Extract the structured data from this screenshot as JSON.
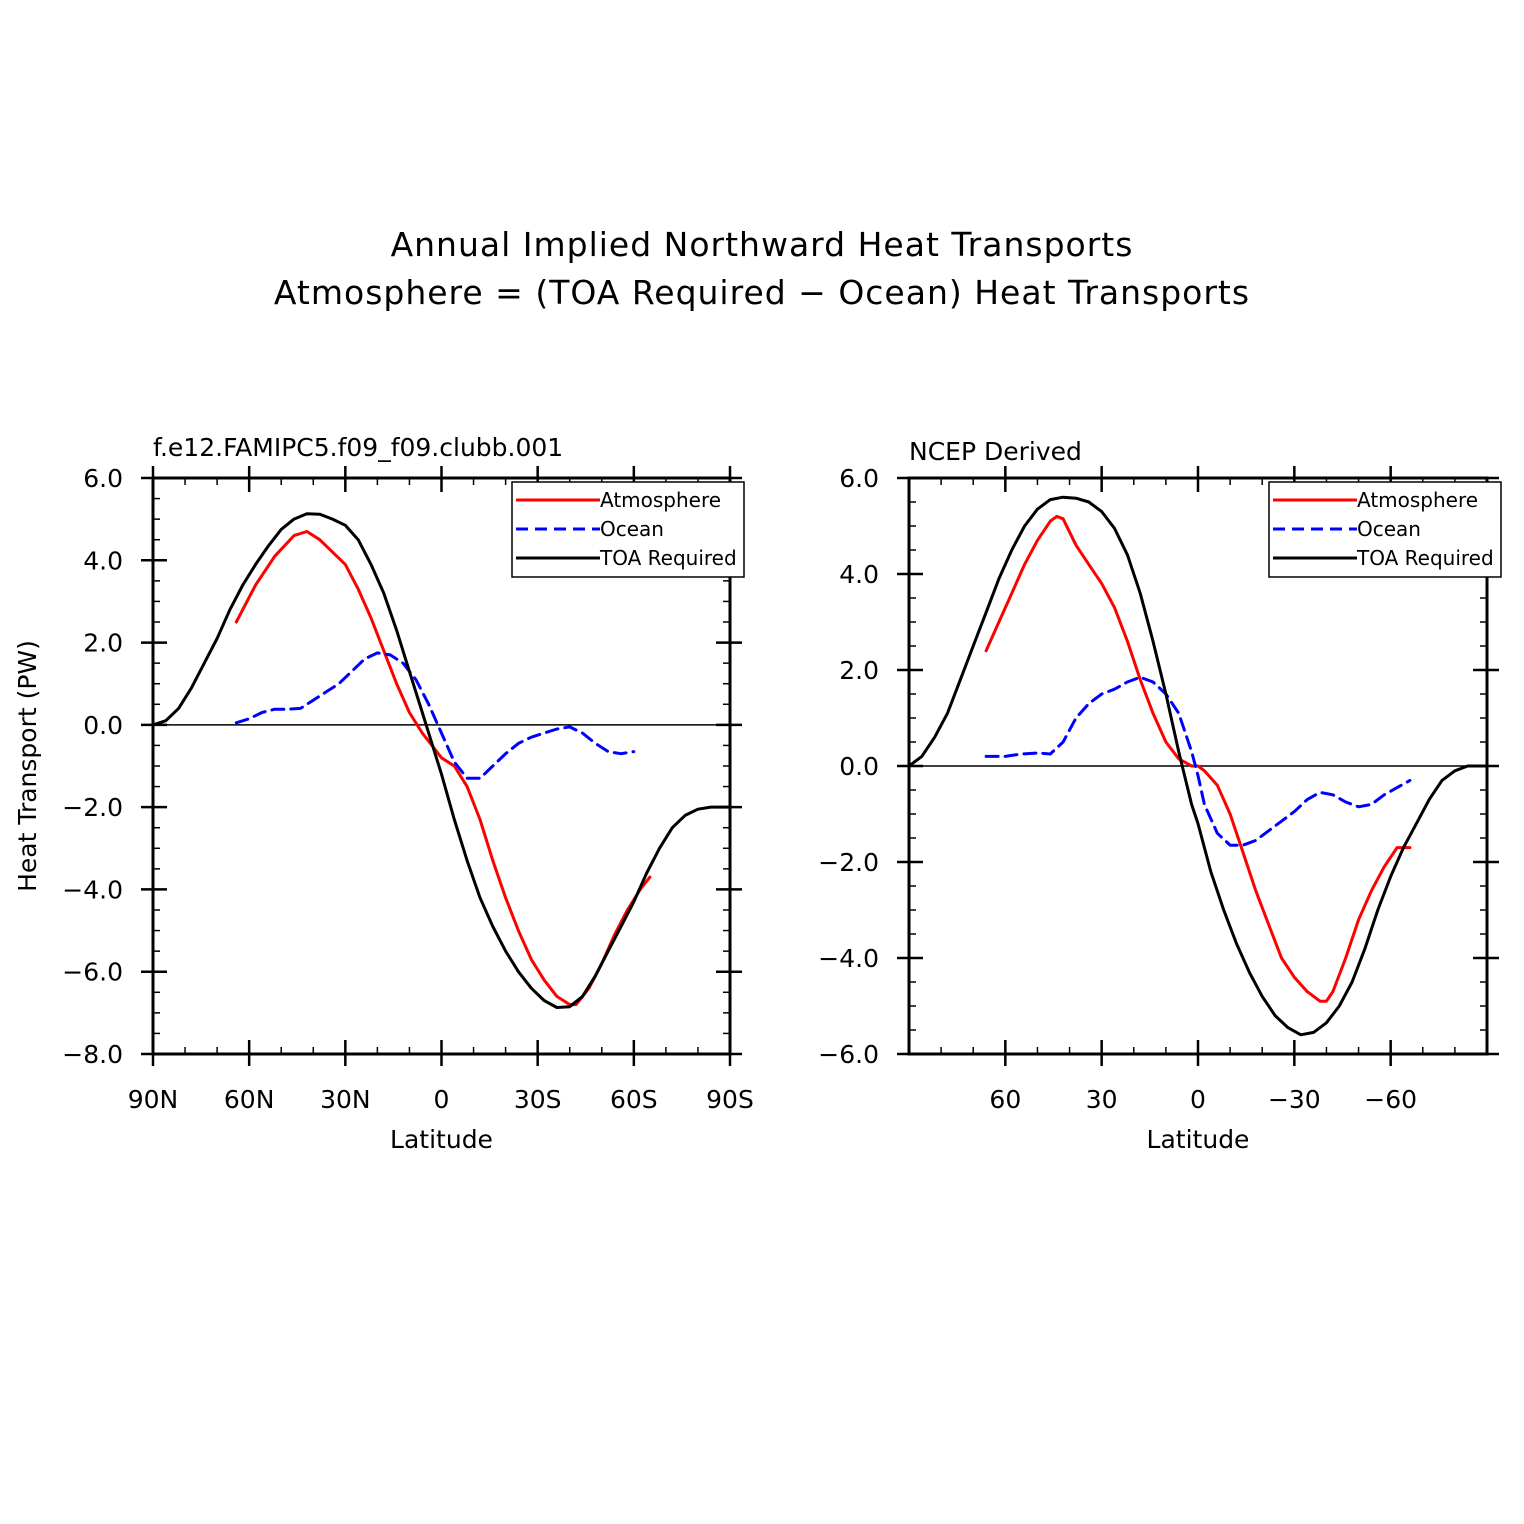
{
  "figure": {
    "title_lines": [
      "Annual Implied Northward Heat Transports",
      "Atmosphere = (TOA Required − Ocean) Heat Transports"
    ]
  },
  "chart_data": [
    {
      "type": "line",
      "title": "f.e12.FAMIPC5.f09_f09.clubb.001",
      "xlabel": "Latitude",
      "ylabel": "Heat Transport (PW)",
      "xlim": [
        90,
        -90
      ],
      "ylim": [
        -8,
        6
      ],
      "x_ticks": [
        90,
        60,
        30,
        0,
        -30,
        -60,
        -90
      ],
      "x_tick_labels": [
        "90N",
        "60N",
        "30N",
        "0",
        "30S",
        "60S",
        "90S"
      ],
      "y_ticks": [
        6,
        4,
        2,
        0,
        -2,
        -4,
        -6,
        -8
      ],
      "y_tick_labels": [
        "6.0",
        "4.0",
        "2.0",
        "0.0",
        "−2.0",
        "−4.0",
        "−6.0",
        "−8.0"
      ],
      "zero_line": true,
      "legend_position": "top-right",
      "series": [
        {
          "name": "Atmosphere",
          "color": "#ff0000",
          "dash": "solid",
          "points": [
            [
              64,
              2.5
            ],
            [
              58,
              3.4
            ],
            [
              52,
              4.1
            ],
            [
              46,
              4.6
            ],
            [
              42,
              4.7
            ],
            [
              38,
              4.5
            ],
            [
              34,
              4.2
            ],
            [
              30,
              3.9
            ],
            [
              26,
              3.3
            ],
            [
              22,
              2.6
            ],
            [
              18,
              1.8
            ],
            [
              14,
              1.0
            ],
            [
              10,
              0.3
            ],
            [
              6,
              -0.2
            ],
            [
              2,
              -0.6
            ],
            [
              0,
              -0.8
            ],
            [
              -4,
              -1.0
            ],
            [
              -8,
              -1.5
            ],
            [
              -12,
              -2.3
            ],
            [
              -16,
              -3.3
            ],
            [
              -20,
              -4.2
            ],
            [
              -24,
              -5.0
            ],
            [
              -28,
              -5.7
            ],
            [
              -32,
              -6.2
            ],
            [
              -36,
              -6.6
            ],
            [
              -40,
              -6.8
            ],
            [
              -42,
              -6.8
            ],
            [
              -46,
              -6.4
            ],
            [
              -50,
              -5.8
            ],
            [
              -54,
              -5.1
            ],
            [
              -58,
              -4.5
            ],
            [
              -62,
              -4.0
            ],
            [
              -65,
              -3.7
            ]
          ]
        },
        {
          "name": "Ocean",
          "color": "#0000ff",
          "dash": "dashed",
          "points": [
            [
              64,
              0.05
            ],
            [
              60,
              0.15
            ],
            [
              56,
              0.3
            ],
            [
              52,
              0.38
            ],
            [
              48,
              0.38
            ],
            [
              44,
              0.4
            ],
            [
              40,
              0.6
            ],
            [
              36,
              0.8
            ],
            [
              32,
              1.0
            ],
            [
              28,
              1.3
            ],
            [
              24,
              1.6
            ],
            [
              20,
              1.75
            ],
            [
              16,
              1.7
            ],
            [
              12,
              1.5
            ],
            [
              8,
              1.1
            ],
            [
              4,
              0.5
            ],
            [
              0,
              -0.2
            ],
            [
              -4,
              -0.9
            ],
            [
              -8,
              -1.3
            ],
            [
              -12,
              -1.3
            ],
            [
              -16,
              -1.0
            ],
            [
              -20,
              -0.7
            ],
            [
              -24,
              -0.45
            ],
            [
              -28,
              -0.3
            ],
            [
              -32,
              -0.2
            ],
            [
              -36,
              -0.1
            ],
            [
              -40,
              -0.05
            ],
            [
              -44,
              -0.2
            ],
            [
              -48,
              -0.45
            ],
            [
              -52,
              -0.65
            ],
            [
              -56,
              -0.7
            ],
            [
              -60,
              -0.65
            ]
          ]
        },
        {
          "name": "TOA Required",
          "color": "#000000",
          "dash": "solid",
          "points": [
            [
              90,
              0.0
            ],
            [
              86,
              0.1
            ],
            [
              82,
              0.4
            ],
            [
              78,
              0.9
            ],
            [
              74,
              1.5
            ],
            [
              70,
              2.1
            ],
            [
              66,
              2.8
            ],
            [
              62,
              3.4
            ],
            [
              58,
              3.9
            ],
            [
              54,
              4.35
            ],
            [
              50,
              4.75
            ],
            [
              46,
              5.0
            ],
            [
              42,
              5.13
            ],
            [
              38,
              5.12
            ],
            [
              34,
              5.0
            ],
            [
              30,
              4.85
            ],
            [
              26,
              4.5
            ],
            [
              22,
              3.9
            ],
            [
              18,
              3.2
            ],
            [
              14,
              2.3
            ],
            [
              10,
              1.3
            ],
            [
              6,
              0.3
            ],
            [
              2,
              -0.7
            ],
            [
              0,
              -1.2
            ],
            [
              -4,
              -2.3
            ],
            [
              -8,
              -3.3
            ],
            [
              -12,
              -4.2
            ],
            [
              -16,
              -4.9
            ],
            [
              -20,
              -5.5
            ],
            [
              -24,
              -6.0
            ],
            [
              -28,
              -6.4
            ],
            [
              -32,
              -6.7
            ],
            [
              -36,
              -6.87
            ],
            [
              -40,
              -6.85
            ],
            [
              -44,
              -6.6
            ],
            [
              -48,
              -6.1
            ],
            [
              -52,
              -5.5
            ],
            [
              -56,
              -4.9
            ],
            [
              -60,
              -4.3
            ],
            [
              -64,
              -3.6
            ],
            [
              -68,
              -3.0
            ],
            [
              -72,
              -2.5
            ],
            [
              -76,
              -2.2
            ],
            [
              -80,
              -2.05
            ],
            [
              -84,
              -2.0
            ],
            [
              -90,
              -2.0
            ]
          ]
        }
      ]
    },
    {
      "type": "line",
      "title": "NCEP Derived",
      "xlabel": "Latitude",
      "ylabel": "",
      "xlim": [
        90,
        -90
      ],
      "ylim": [
        -6,
        6
      ],
      "x_ticks": [
        60,
        30,
        0,
        -30,
        -60
      ],
      "x_tick_labels": [
        "60",
        "30",
        "0",
        "−30",
        "−60"
      ],
      "y_ticks": [
        6,
        4,
        2,
        0,
        -2,
        -4,
        -6
      ],
      "y_tick_labels": [
        "6.0",
        "4.0",
        "2.0",
        "0.0",
        "−2.0",
        "−4.0",
        "−6.0"
      ],
      "zero_line": true,
      "legend_position": "top-right",
      "series": [
        {
          "name": "Atmosphere",
          "color": "#ff0000",
          "dash": "solid",
          "points": [
            [
              66,
              2.4
            ],
            [
              62,
              3.0
            ],
            [
              58,
              3.6
            ],
            [
              54,
              4.2
            ],
            [
              50,
              4.7
            ],
            [
              46,
              5.1
            ],
            [
              44,
              5.2
            ],
            [
              42,
              5.15
            ],
            [
              38,
              4.6
            ],
            [
              34,
              4.2
            ],
            [
              30,
              3.8
            ],
            [
              26,
              3.3
            ],
            [
              22,
              2.6
            ],
            [
              18,
              1.8
            ],
            [
              14,
              1.1
            ],
            [
              10,
              0.5
            ],
            [
              6,
              0.15
            ],
            [
              2,
              0.0
            ],
            [
              0,
              0.0
            ],
            [
              -2,
              -0.1
            ],
            [
              -6,
              -0.4
            ],
            [
              -10,
              -1.0
            ],
            [
              -14,
              -1.8
            ],
            [
              -18,
              -2.6
            ],
            [
              -22,
              -3.3
            ],
            [
              -26,
              -4.0
            ],
            [
              -30,
              -4.4
            ],
            [
              -34,
              -4.7
            ],
            [
              -38,
              -4.9
            ],
            [
              -40,
              -4.9
            ],
            [
              -42,
              -4.7
            ],
            [
              -46,
              -4.0
            ],
            [
              -50,
              -3.2
            ],
            [
              -54,
              -2.6
            ],
            [
              -58,
              -2.1
            ],
            [
              -62,
              -1.7
            ],
            [
              -66,
              -1.7
            ]
          ]
        },
        {
          "name": "Ocean",
          "color": "#0000ff",
          "dash": "dashed",
          "points": [
            [
              66,
              0.2
            ],
            [
              60,
              0.2
            ],
            [
              55,
              0.25
            ],
            [
              50,
              0.27
            ],
            [
              46,
              0.25
            ],
            [
              42,
              0.5
            ],
            [
              38,
              1.0
            ],
            [
              34,
              1.3
            ],
            [
              30,
              1.5
            ],
            [
              26,
              1.6
            ],
            [
              22,
              1.75
            ],
            [
              18,
              1.85
            ],
            [
              14,
              1.75
            ],
            [
              10,
              1.5
            ],
            [
              6,
              1.1
            ],
            [
              2,
              0.3
            ],
            [
              0,
              -0.2
            ],
            [
              -2,
              -0.8
            ],
            [
              -6,
              -1.4
            ],
            [
              -10,
              -1.65
            ],
            [
              -14,
              -1.65
            ],
            [
              -18,
              -1.55
            ],
            [
              -22,
              -1.35
            ],
            [
              -26,
              -1.15
            ],
            [
              -30,
              -0.95
            ],
            [
              -34,
              -0.7
            ],
            [
              -38,
              -0.55
            ],
            [
              -42,
              -0.6
            ],
            [
              -46,
              -0.75
            ],
            [
              -50,
              -0.85
            ],
            [
              -54,
              -0.8
            ],
            [
              -58,
              -0.6
            ],
            [
              -62,
              -0.45
            ],
            [
              -66,
              -0.3
            ]
          ]
        },
        {
          "name": "TOA Required",
          "color": "#000000",
          "dash": "solid",
          "points": [
            [
              90,
              0.0
            ],
            [
              86,
              0.2
            ],
            [
              82,
              0.6
            ],
            [
              78,
              1.1
            ],
            [
              74,
              1.8
            ],
            [
              70,
              2.5
            ],
            [
              66,
              3.2
            ],
            [
              62,
              3.9
            ],
            [
              58,
              4.5
            ],
            [
              54,
              5.0
            ],
            [
              50,
              5.35
            ],
            [
              46,
              5.55
            ],
            [
              42,
              5.6
            ],
            [
              38,
              5.58
            ],
            [
              34,
              5.5
            ],
            [
              30,
              5.3
            ],
            [
              26,
              4.95
            ],
            [
              22,
              4.4
            ],
            [
              18,
              3.6
            ],
            [
              14,
              2.6
            ],
            [
              10,
              1.5
            ],
            [
              6,
              0.3
            ],
            [
              2,
              -0.8
            ],
            [
              0,
              -1.2
            ],
            [
              -4,
              -2.2
            ],
            [
              -8,
              -3.0
            ],
            [
              -12,
              -3.7
            ],
            [
              -16,
              -4.3
            ],
            [
              -20,
              -4.8
            ],
            [
              -24,
              -5.2
            ],
            [
              -28,
              -5.45
            ],
            [
              -32,
              -5.6
            ],
            [
              -36,
              -5.55
            ],
            [
              -40,
              -5.35
            ],
            [
              -44,
              -5.0
            ],
            [
              -48,
              -4.5
            ],
            [
              -52,
              -3.8
            ],
            [
              -56,
              -3.0
            ],
            [
              -60,
              -2.3
            ],
            [
              -64,
              -1.7
            ],
            [
              -68,
              -1.2
            ],
            [
              -72,
              -0.7
            ],
            [
              -76,
              -0.3
            ],
            [
              -80,
              -0.1
            ],
            [
              -84,
              0.0
            ],
            [
              -90,
              0.0
            ]
          ]
        }
      ]
    }
  ]
}
